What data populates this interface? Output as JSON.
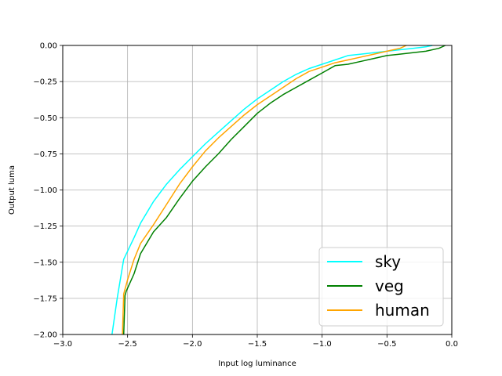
{
  "chart_data": {
    "type": "line",
    "xlabel": "Input log luminance",
    "ylabel": "Output luma",
    "xlim": [
      -3.0,
      0.0
    ],
    "ylim": [
      -2.0,
      0.0
    ],
    "xticks": [
      "−3.0",
      "−2.5",
      "−2.0",
      "−1.5",
      "−1.0",
      "−0.5",
      "0.0"
    ],
    "xtick_values": [
      -3.0,
      -2.5,
      -2.0,
      -1.5,
      -1.0,
      -0.5,
      0.0
    ],
    "yticks": [
      "0.00",
      "−0.25",
      "−0.50",
      "−0.75",
      "−1.00",
      "−1.25",
      "−1.50",
      "−1.75",
      "−2.00"
    ],
    "ytick_values": [
      0.0,
      -0.25,
      -0.5,
      -0.75,
      -1.0,
      -1.25,
      -1.5,
      -1.75,
      -2.0
    ],
    "grid": true,
    "legend_position": "lower-right",
    "series": [
      {
        "name": "sky",
        "color": "#00ffff",
        "x": [
          -2.62,
          -2.58,
          -2.53,
          -2.45,
          -2.4,
          -2.3,
          -2.2,
          -2.1,
          -2.0,
          -1.9,
          -1.8,
          -1.7,
          -1.6,
          -1.5,
          -1.4,
          -1.3,
          -1.2,
          -1.1,
          -1.0,
          -0.9,
          -0.8,
          -0.7,
          -0.6,
          -0.5,
          -0.4,
          -0.3,
          -0.2,
          -0.15
        ],
        "y": [
          -2.0,
          -1.75,
          -1.48,
          -1.33,
          -1.23,
          -1.08,
          -0.96,
          -0.86,
          -0.77,
          -0.68,
          -0.6,
          -0.52,
          -0.44,
          -0.37,
          -0.31,
          -0.25,
          -0.2,
          -0.16,
          -0.13,
          -0.1,
          -0.07,
          -0.06,
          -0.05,
          -0.04,
          -0.03,
          -0.02,
          -0.01,
          0.0
        ]
      },
      {
        "name": "veg",
        "color": "#008000",
        "x": [
          -2.53,
          -2.52,
          -2.51,
          -2.45,
          -2.4,
          -2.3,
          -2.2,
          -2.1,
          -2.0,
          -1.9,
          -1.8,
          -1.7,
          -1.6,
          -1.5,
          -1.4,
          -1.3,
          -1.2,
          -1.1,
          -1.0,
          -0.9,
          -0.8,
          -0.7,
          -0.6,
          -0.5,
          -0.4,
          -0.3,
          -0.2,
          -0.1,
          -0.05
        ],
        "y": [
          -2.0,
          -1.73,
          -1.7,
          -1.58,
          -1.44,
          -1.29,
          -1.19,
          -1.06,
          -0.94,
          -0.84,
          -0.75,
          -0.65,
          -0.56,
          -0.47,
          -0.4,
          -0.34,
          -0.29,
          -0.24,
          -0.19,
          -0.14,
          -0.13,
          -0.11,
          -0.09,
          -0.07,
          -0.06,
          -0.05,
          -0.04,
          -0.02,
          0.0
        ]
      },
      {
        "name": "human",
        "color": "#ffa500",
        "x": [
          -2.54,
          -2.53,
          -2.5,
          -2.45,
          -2.4,
          -2.3,
          -2.2,
          -2.1,
          -2.0,
          -1.9,
          -1.8,
          -1.7,
          -1.6,
          -1.5,
          -1.4,
          -1.3,
          -1.2,
          -1.1,
          -1.0,
          -0.9,
          -0.8,
          -0.7,
          -0.6,
          -0.5,
          -0.4,
          -0.35
        ],
        "y": [
          -2.0,
          -1.72,
          -1.62,
          -1.48,
          -1.37,
          -1.24,
          -1.1,
          -0.96,
          -0.84,
          -0.73,
          -0.64,
          -0.56,
          -0.48,
          -0.41,
          -0.35,
          -0.29,
          -0.23,
          -0.18,
          -0.15,
          -0.12,
          -0.1,
          -0.08,
          -0.06,
          -0.04,
          -0.02,
          0.0
        ]
      }
    ]
  }
}
